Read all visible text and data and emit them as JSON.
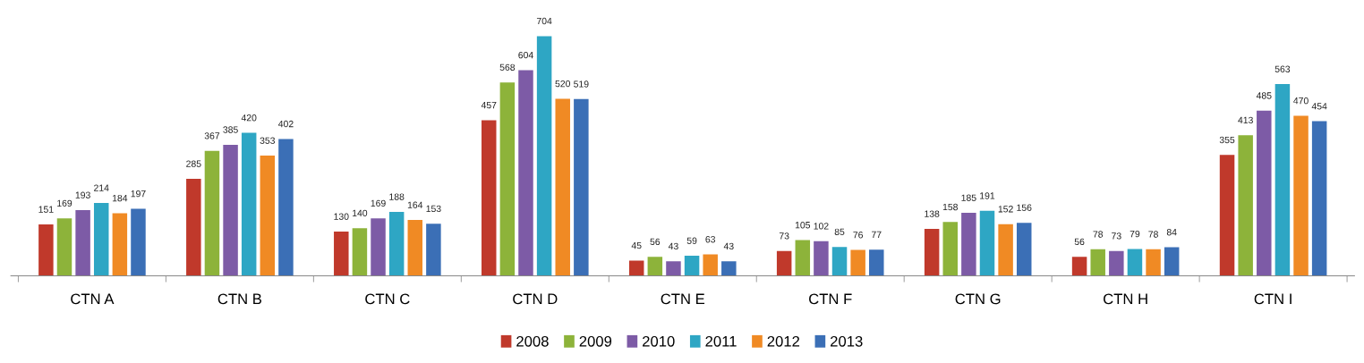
{
  "chart_data": {
    "type": "bar",
    "categories": [
      "CTN A",
      "CTN B",
      "CTN C",
      "CTN D",
      "CTN E",
      "CTN F",
      "CTN G",
      "CTN H",
      "CTN I"
    ],
    "series": [
      {
        "name": "2008",
        "color": "#c0392b",
        "values": [
          151,
          285,
          130,
          457,
          45,
          73,
          138,
          56,
          355
        ]
      },
      {
        "name": "2009",
        "color": "#8db33a",
        "values": [
          169,
          367,
          140,
          568,
          56,
          105,
          158,
          78,
          413
        ]
      },
      {
        "name": "2010",
        "color": "#7d5ba6",
        "values": [
          193,
          385,
          169,
          604,
          43,
          102,
          185,
          73,
          485
        ]
      },
      {
        "name": "2011",
        "color": "#2ea6c4",
        "values": [
          214,
          420,
          188,
          704,
          59,
          85,
          191,
          79,
          563
        ]
      },
      {
        "name": "2012",
        "color": "#f08a24",
        "values": [
          184,
          353,
          164,
          520,
          63,
          76,
          152,
          78,
          470
        ]
      },
      {
        "name": "2013",
        "color": "#3b6fb6",
        "values": [
          197,
          402,
          153,
          519,
          43,
          77,
          156,
          84,
          454
        ]
      }
    ],
    "data_labels": true,
    "legend": "bottom",
    "grid": false,
    "tick_labels": "x"
  }
}
